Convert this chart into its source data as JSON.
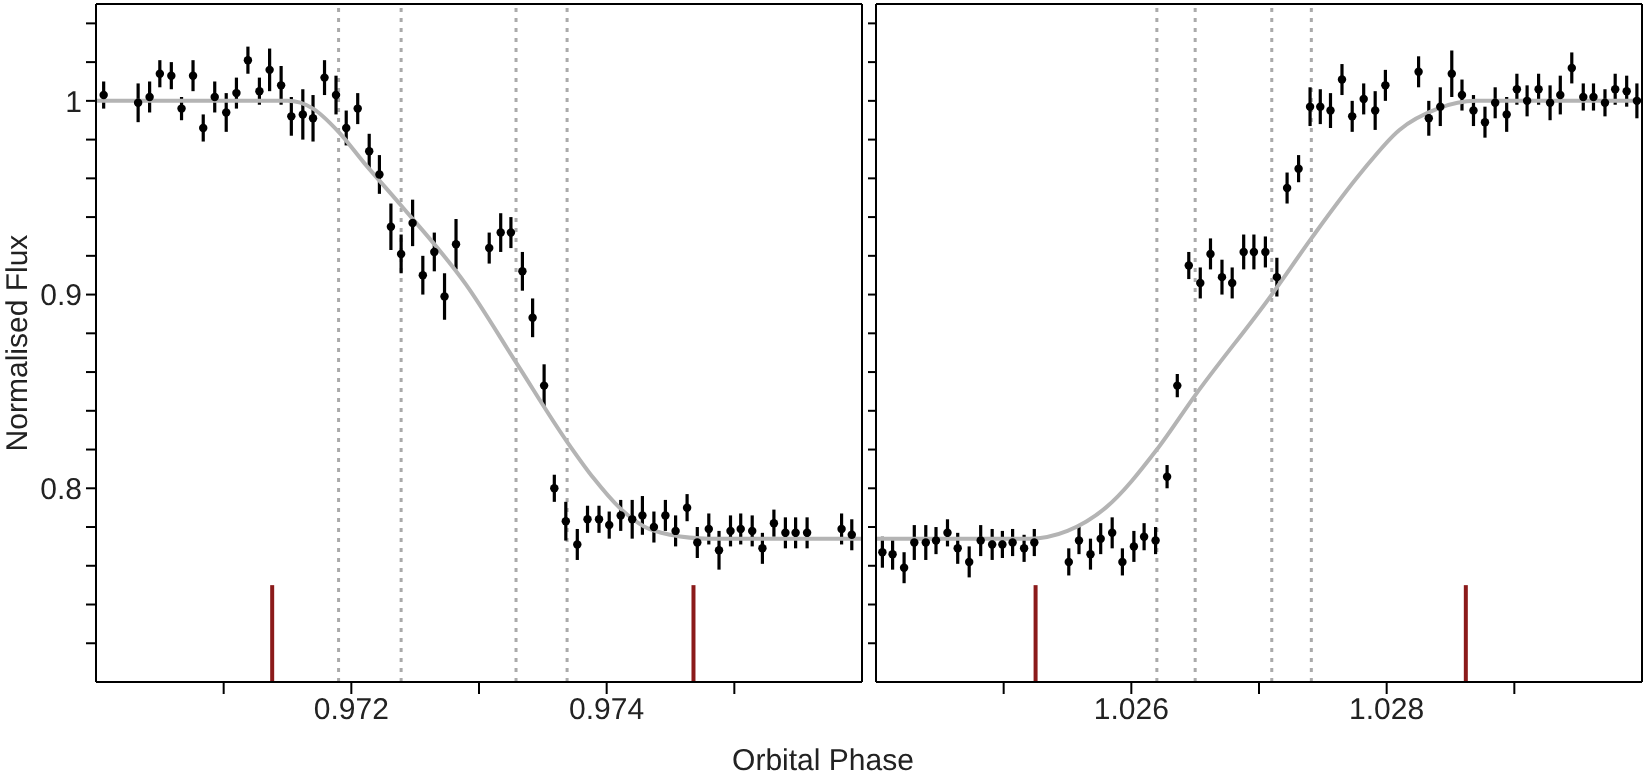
{
  "chart_data": [
    {
      "type": "scatter",
      "xlabel": "Orbital Phase",
      "ylabel": "Normalised Flux",
      "xlim": [
        0.97,
        0.976
      ],
      "ylim": [
        0.7,
        1.05
      ],
      "xticks": [
        {
          "value": 0.971,
          "label": null
        },
        0.972,
        {
          "value": 0.973,
          "label": null
        },
        0.974,
        {
          "value": 0.975,
          "label": null
        }
      ],
      "yticks": [
        {
          "value": 0.72,
          "label": null
        },
        {
          "value": 0.74,
          "label": null
        },
        {
          "value": 0.76,
          "label": null
        },
        {
          "value": 0.78,
          "label": null
        },
        0.8,
        {
          "value": 0.82,
          "label": null
        },
        {
          "value": 0.84,
          "label": null
        },
        {
          "value": 0.86,
          "label": null
        },
        {
          "value": 0.88,
          "label": null
        },
        0.9,
        {
          "value": 0.92,
          "label": null
        },
        {
          "value": 0.94,
          "label": null
        },
        {
          "value": 0.96,
          "label": null
        },
        {
          "value": 0.98,
          "label": null
        },
        1,
        {
          "value": 1.02,
          "label": null
        },
        {
          "value": 1.04,
          "label": null
        }
      ],
      "legend": false,
      "ref_lines": [
        {
          "axis": "x",
          "value": 0.9719,
          "color": "#aaaaaa",
          "line_style": "dotted"
        },
        {
          "axis": "x",
          "value": 0.97239,
          "color": "#aaaaaa",
          "line_style": "dotted"
        },
        {
          "axis": "x",
          "value": 0.97329,
          "color": "#aaaaaa",
          "line_style": "dotted"
        },
        {
          "axis": "x",
          "value": 0.97369,
          "color": "#aaaaaa",
          "line_style": "dotted"
        }
      ],
      "series": [
        {
          "marker": "circle",
          "color": "#000000",
          "x": [
            0.97006,
            0.97033,
            0.97042,
            0.9705,
            0.97059,
            0.97067,
            0.97076,
            0.97084,
            0.97093,
            0.97102,
            0.9711,
            0.97119,
            0.97128,
            0.97136,
            0.97145,
            0.97153,
            0.97162,
            0.9717,
            0.97179,
            0.97188,
            0.97196,
            0.97205,
            0.97214,
            0.97222,
            0.97231,
            0.97239,
            0.97248,
            0.97256,
            0.97265,
            0.97273,
            0.97282,
            0.97308,
            0.97317,
            0.97325,
            0.97334,
            0.97342,
            0.97351,
            0.97359,
            0.97368,
            0.97377,
            0.97385,
            0.97394,
            0.97402,
            0.97411,
            0.9742,
            0.97428,
            0.97437,
            0.97446,
            0.97454,
            0.97463,
            0.97471,
            0.9748,
            0.97488,
            0.97497,
            0.97505,
            0.97514,
            0.97522,
            0.97531,
            0.9754,
            0.97548,
            0.97557,
            0.97584,
            0.97592
          ],
          "values": [
            1.003,
            0.999,
            1.002,
            1.014,
            1.013,
            0.996,
            1.013,
            0.986,
            1.002,
            0.994,
            1.004,
            1.021,
            1.005,
            1.016,
            1.008,
            0.992,
            0.993,
            0.991,
            1.012,
            1.003,
            0.986,
            0.996,
            0.974,
            0.962,
            0.935,
            0.921,
            0.937,
            0.91,
            0.922,
            0.899,
            0.926,
            0.924,
            0.932,
            0.932,
            0.912,
            0.888,
            0.853,
            0.8,
            0.783,
            0.771,
            0.784,
            0.784,
            0.781,
            0.786,
            0.784,
            0.786,
            0.78,
            0.786,
            0.778,
            0.79,
            0.772,
            0.779,
            0.768,
            0.778,
            0.779,
            0.778,
            0.769,
            0.782,
            0.777,
            0.777,
            0.777,
            0.779,
            0.776
          ],
          "errors": [
            0.007,
            0.01,
            0.008,
            0.007,
            0.007,
            0.006,
            0.008,
            0.007,
            0.008,
            0.01,
            0.008,
            0.007,
            0.007,
            0.011,
            0.01,
            0.01,
            0.013,
            0.012,
            0.009,
            0.01,
            0.009,
            0.008,
            0.009,
            0.01,
            0.012,
            0.01,
            0.012,
            0.01,
            0.01,
            0.012,
            0.013,
            0.008,
            0.01,
            0.008,
            0.01,
            0.01,
            0.011,
            0.007,
            0.01,
            0.008,
            0.007,
            0.007,
            0.007,
            0.008,
            0.01,
            0.01,
            0.008,
            0.008,
            0.008,
            0.007,
            0.008,
            0.008,
            0.01,
            0.008,
            0.008,
            0.008,
            0.008,
            0.007,
            0.008,
            0.008,
            0.008,
            0.008,
            0.008
          ]
        },
        {
          "type": "line",
          "color": "#b4b4b4",
          "x": [
            0.97,
            0.9715,
            0.9717,
            0.9719,
            0.9721,
            0.97239,
            0.9729,
            0.97329,
            0.97369,
            0.9739,
            0.9741,
            0.9743,
            0.9745,
            0.9748,
            0.976
          ],
          "values": [
            1,
            1,
            0.996,
            0.984,
            0.968,
            0.946,
            0.905,
            0.865,
            0.824,
            0.805,
            0.79,
            0.78,
            0.776,
            0.774,
            0.774
          ]
        },
        {
          "type": "line",
          "color": "#8b1a1a",
          "x": [
            0.97138,
            0.97138
          ],
          "values": [
            0.7,
            0.75
          ]
        },
        {
          "type": "line",
          "color": "#8b1a1a",
          "x": [
            0.97468,
            0.97468
          ],
          "values": [
            0.7,
            0.75
          ]
        }
      ]
    },
    {
      "type": "scatter",
      "xlim": [
        1.024,
        1.03
      ],
      "ylim": [
        0.7,
        1.05
      ],
      "tick_labels": "x",
      "xticks": [
        {
          "value": 1.025,
          "label": null
        },
        1.026,
        {
          "value": 1.027,
          "label": null
        },
        1.028,
        {
          "value": 1.029,
          "label": null
        }
      ],
      "yticks": [
        0.72,
        0.74,
        0.76,
        0.78,
        0.8,
        0.82,
        0.84,
        0.86,
        0.88,
        0.9,
        0.92,
        0.94,
        0.96,
        0.98,
        1,
        1.02,
        1.04
      ],
      "legend": false,
      "ref_lines": [
        {
          "axis": "x",
          "value": 1.0262,
          "color": "#aaaaaa",
          "line_style": "dotted"
        },
        {
          "axis": "x",
          "value": 1.0265,
          "color": "#aaaaaa",
          "line_style": "dotted"
        },
        {
          "axis": "x",
          "value": 1.0271,
          "color": "#aaaaaa",
          "line_style": "dotted"
        },
        {
          "axis": "x",
          "value": 1.02741,
          "color": "#aaaaaa",
          "line_style": "dotted"
        }
      ],
      "series": [
        {
          "marker": "circle",
          "color": "#000000",
          "x": [
            1.02405,
            1.02413,
            1.02422,
            1.0243,
            1.02439,
            1.02447,
            1.02456,
            1.02464,
            1.02473,
            1.02482,
            1.02491,
            1.02499,
            1.02507,
            1.02516,
            1.02524,
            1.02551,
            1.02559,
            1.02568,
            1.02576,
            1.02585,
            1.02593,
            1.02602,
            1.0261,
            1.02619,
            1.02628,
            1.02636,
            1.02645,
            1.02654,
            1.02662,
            1.02671,
            1.02679,
            1.02688,
            1.02696,
            1.02705,
            1.02714,
            1.02722,
            1.02731,
            1.0274,
            1.02748,
            1.02756,
            1.02765,
            1.02773,
            1.02782,
            1.02791,
            1.02799,
            1.02825,
            1.02833,
            1.02842,
            1.02851,
            1.02859,
            1.02868,
            1.02877,
            1.02885,
            1.02894,
            1.02902,
            1.0291,
            1.02919,
            1.02928,
            1.02936,
            1.02945,
            1.02954,
            1.02962,
            1.02971,
            1.02979,
            1.02988,
            1.02996
          ],
          "values": [
            0.767,
            0.766,
            0.759,
            0.772,
            0.772,
            0.773,
            0.777,
            0.769,
            0.762,
            0.773,
            0.771,
            0.771,
            0.772,
            0.769,
            0.772,
            0.762,
            0.773,
            0.766,
            0.774,
            0.777,
            0.762,
            0.77,
            0.775,
            0.773,
            0.806,
            0.853,
            0.915,
            0.906,
            0.921,
            0.909,
            0.906,
            0.922,
            0.922,
            0.922,
            0.909,
            0.955,
            0.965,
            0.997,
            0.997,
            0.995,
            1.011,
            0.992,
            1.001,
            0.995,
            1.008,
            1.015,
            0.991,
            0.997,
            1.014,
            1.003,
            0.995,
            0.989,
            0.999,
            0.993,
            1.006,
            1,
            1.006,
            0.999,
            1.003,
            1.017,
            1.002,
            1.002,
            0.999,
            1.006,
            1.005,
            1
          ],
          "errors": [
            0.008,
            0.008,
            0.008,
            0.009,
            0.009,
            0.007,
            0.007,
            0.008,
            0.008,
            0.008,
            0.008,
            0.007,
            0.007,
            0.007,
            0.007,
            0.007,
            0.007,
            0.008,
            0.008,
            0.008,
            0.007,
            0.008,
            0.007,
            0.007,
            0.006,
            0.006,
            0.007,
            0.008,
            0.008,
            0.009,
            0.008,
            0.009,
            0.009,
            0.008,
            0.01,
            0.008,
            0.007,
            0.01,
            0.009,
            0.009,
            0.008,
            0.008,
            0.008,
            0.01,
            0.008,
            0.008,
            0.009,
            0.01,
            0.012,
            0.008,
            0.008,
            0.008,
            0.008,
            0.009,
            0.008,
            0.008,
            0.008,
            0.009,
            0.01,
            0.008,
            0.007,
            0.007,
            0.007,
            0.008,
            0.008,
            0.009
          ]
        },
        {
          "type": "line",
          "color": "#b4b4b4",
          "x": [
            1.024,
            1.0252,
            1.0255,
            1.0258,
            1.0262,
            1.0265,
            1.0271,
            1.02741,
            1.0278,
            1.0281,
            1.0284,
            1.0287,
            1.03
          ],
          "values": [
            0.774,
            0.774,
            0.778,
            0.79,
            0.82,
            0.848,
            0.9,
            0.929,
            0.963,
            0.985,
            0.996,
            1,
            1
          ]
        },
        {
          "type": "line",
          "color": "#8b1a1a",
          "x": [
            1.02525,
            1.02525
          ],
          "values": [
            0.7,
            0.75
          ]
        },
        {
          "type": "line",
          "color": "#8b1a1a",
          "x": [
            1.02862,
            1.02862
          ],
          "values": [
            0.7,
            0.75
          ]
        }
      ]
    }
  ]
}
